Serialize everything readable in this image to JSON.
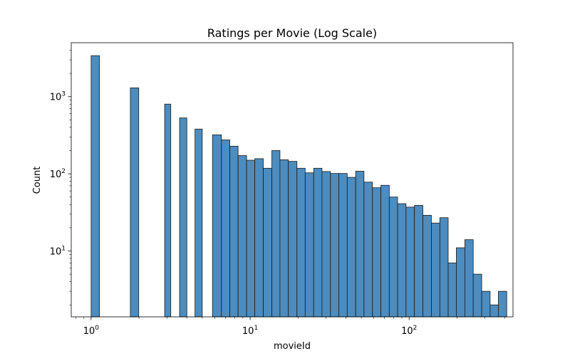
{
  "chart_data": {
    "type": "bar",
    "title": "Ratings per Movie (Log Scale)",
    "xlabel": "movieId",
    "ylabel": "Count",
    "xscale": "log",
    "yscale": "log",
    "xlim": [
      0.75,
      450
    ],
    "ylim": [
      1.4,
      5000
    ],
    "bar_color": "#4c8cbf",
    "bar_edge_color": "#1a1a1a",
    "grid": false,
    "legend": "none",
    "x_ticks": [
      {
        "value": 1,
        "label": "10",
        "exp": "0"
      },
      {
        "value": 10,
        "label": "10",
        "exp": "1"
      },
      {
        "value": 100,
        "label": "10",
        "exp": "2"
      }
    ],
    "y_ticks": [
      {
        "value": 10,
        "label": "10",
        "exp": "1"
      },
      {
        "value": 100,
        "label": "10",
        "exp": "2"
      },
      {
        "value": 1000,
        "label": "10",
        "exp": "3"
      }
    ],
    "bins": [
      {
        "x0": 1.0,
        "x1": 1.129,
        "count": 3400
      },
      {
        "x0": 1.765,
        "x1": 1.993,
        "count": 1300
      },
      {
        "x0": 2.9,
        "x1": 3.17,
        "count": 800
      },
      {
        "x0": 3.6,
        "x1": 4.0,
        "count": 530
      },
      {
        "x0": 4.5,
        "x1": 5.0,
        "count": 380
      },
      {
        "x0": 5.8,
        "x1": 6.6,
        "count": 320
      },
      {
        "x0": 6.6,
        "x1": 7.45,
        "count": 275
      },
      {
        "x0": 7.45,
        "x1": 8.4,
        "count": 228
      },
      {
        "x0": 8.4,
        "x1": 9.5,
        "count": 172
      },
      {
        "x0": 9.5,
        "x1": 10.7,
        "count": 150
      },
      {
        "x0": 10.7,
        "x1": 12.1,
        "count": 157
      },
      {
        "x0": 12.1,
        "x1": 13.7,
        "count": 118
      },
      {
        "x0": 13.7,
        "x1": 15.4,
        "count": 200
      },
      {
        "x0": 15.4,
        "x1": 17.4,
        "count": 152
      },
      {
        "x0": 17.4,
        "x1": 19.7,
        "count": 145
      },
      {
        "x0": 19.7,
        "x1": 22.2,
        "count": 118
      },
      {
        "x0": 22.2,
        "x1": 25.1,
        "count": 103
      },
      {
        "x0": 25.1,
        "x1": 28.3,
        "count": 118
      },
      {
        "x0": 28.3,
        "x1": 32.0,
        "count": 107
      },
      {
        "x0": 32.0,
        "x1": 36.1,
        "count": 101
      },
      {
        "x0": 36.1,
        "x1": 40.8,
        "count": 101
      },
      {
        "x0": 40.8,
        "x1": 46.1,
        "count": 90
      },
      {
        "x0": 46.1,
        "x1": 52.0,
        "count": 108
      },
      {
        "x0": 52.0,
        "x1": 58.8,
        "count": 78
      },
      {
        "x0": 58.8,
        "x1": 66.4,
        "count": 66
      },
      {
        "x0": 66.4,
        "x1": 75.0,
        "count": 71
      },
      {
        "x0": 75.0,
        "x1": 84.6,
        "count": 50
      },
      {
        "x0": 84.6,
        "x1": 95.6,
        "count": 41
      },
      {
        "x0": 95.6,
        "x1": 108,
        "count": 37
      },
      {
        "x0": 108,
        "x1": 122,
        "count": 39
      },
      {
        "x0": 122,
        "x1": 138,
        "count": 29
      },
      {
        "x0": 138,
        "x1": 156,
        "count": 23
      },
      {
        "x0": 156,
        "x1": 176,
        "count": 27
      },
      {
        "x0": 176,
        "x1": 198,
        "count": 7
      },
      {
        "x0": 198,
        "x1": 224,
        "count": 11
      },
      {
        "x0": 224,
        "x1": 253,
        "count": 14
      },
      {
        "x0": 253,
        "x1": 286,
        "count": 5
      },
      {
        "x0": 286,
        "x1": 323,
        "count": 3
      },
      {
        "x0": 323,
        "x1": 364,
        "count": 2
      },
      {
        "x0": 364,
        "x1": 411,
        "count": 3
      }
    ]
  }
}
